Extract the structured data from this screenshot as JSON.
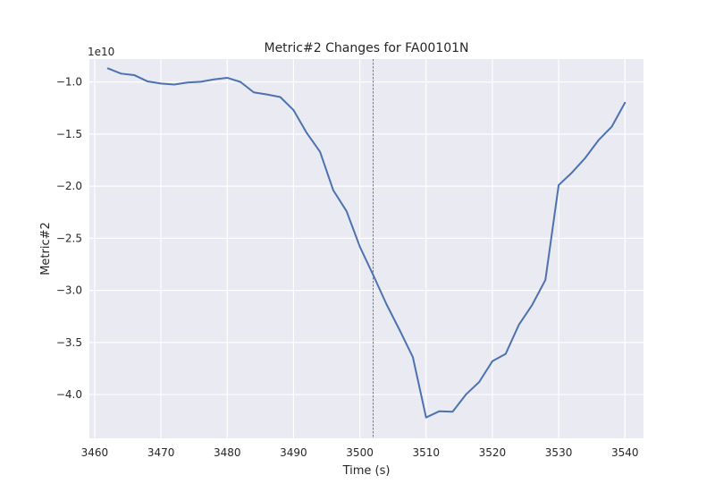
{
  "chart_data": {
    "type": "line",
    "title": "Metric#2 Changes for FA00101N",
    "xlabel": "Time (s)",
    "ylabel": "Metric#2",
    "y_offset_label": "1e10",
    "y_scale_factor": 10000000000,
    "xlim": [
      3459.2,
      3542.8
    ],
    "ylim": [
      -44200000000,
      -7800000000
    ],
    "x_ticks": [
      3460,
      3470,
      3480,
      3490,
      3500,
      3510,
      3520,
      3530,
      3540
    ],
    "x_tick_labels": [
      "3460",
      "3470",
      "3480",
      "3490",
      "3500",
      "3510",
      "3520",
      "3530",
      "3540"
    ],
    "y_ticks": [
      -40000000000,
      -35000000000,
      -30000000000,
      -25000000000,
      -20000000000,
      -15000000000,
      -10000000000
    ],
    "y_tick_labels": [
      "−4.0",
      "−3.5",
      "−3.0",
      "−2.5",
      "−2.0",
      "−1.5",
      "−1.0"
    ],
    "grid": true,
    "reference_line": {
      "x": 3502,
      "color": "#d62728",
      "style": "dashed"
    },
    "series": [
      {
        "color": "#4c72b0",
        "x": [
          3462,
          3464,
          3466,
          3468,
          3470,
          3472,
          3474,
          3476,
          3478,
          3480,
          3482,
          3484,
          3486,
          3488,
          3490,
          3492,
          3494,
          3496,
          3498,
          3500,
          3502,
          3504,
          3506,
          3508,
          3510,
          3512,
          3514,
          3516,
          3518,
          3520,
          3522,
          3524,
          3526,
          3528,
          3530,
          3532,
          3534,
          3536,
          3538,
          3540
        ],
        "y": [
          -8700000000,
          -9200000000,
          -9350000000,
          -9950000000,
          -10150000000,
          -10250000000,
          -10050000000,
          -9980000000,
          -9750000000,
          -9600000000,
          -10000000000,
          -11000000000,
          -11200000000,
          -11450000000,
          -12700000000,
          -14900000000,
          -16700000000,
          -20400000000,
          -22400000000,
          -25800000000,
          -28500000000,
          -31300000000,
          -33800000000,
          -36400000000,
          -42200000000,
          -41600000000,
          -41650000000,
          -40000000000,
          -38800000000,
          -36800000000,
          -36100000000,
          -33300000000,
          -31400000000,
          -29000000000,
          -19900000000,
          -18700000000,
          -17300000000,
          -15600000000,
          -14300000000,
          -12000000000
        ]
      }
    ]
  }
}
